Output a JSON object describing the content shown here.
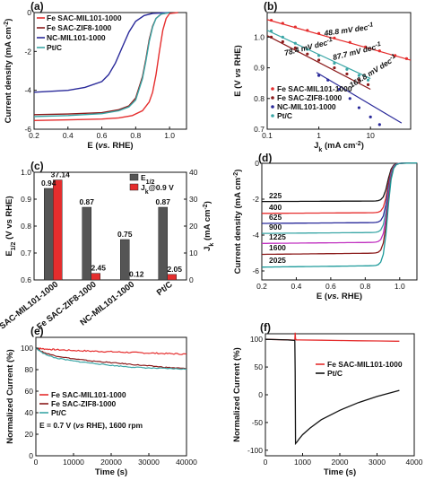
{
  "colors": {
    "fe_mil": "#e52d2d",
    "fe_zif": "#8b1a1a",
    "nc": "#2a2a9a",
    "ptc": "#3aa6a6",
    "black": "#111111",
    "grey": "#555555"
  },
  "chart_data": [
    {
      "id": "a",
      "tag": "(a)",
      "type": "line",
      "ylabel": "Current density (mA cm",
      "ylabel_sup": "-2",
      "ylabel_end": ")",
      "xlabel_pre": "E (",
      "xlabel_it": "vs.",
      "xlabel_post": " RHE)",
      "xlim": [
        0.2,
        1.1
      ],
      "ylim": [
        -6,
        0
      ],
      "xticks": [
        "0.2",
        "0.4",
        "0.6",
        "0.8",
        "1.0"
      ],
      "yticks": [
        "0",
        "-2",
        "-4",
        "-6"
      ],
      "legend": [
        "Fe SAC-MIL101-1000",
        "Fe SAC-ZIF8-1000",
        "NC-MIL101-1000",
        "Pt/C"
      ],
      "series": [
        {
          "name": "Fe SAC-MIL101-1000",
          "color": "fe_mil",
          "x": [
            0.2,
            0.4,
            0.6,
            0.7,
            0.78,
            0.84,
            0.88,
            0.9,
            0.92,
            0.94,
            0.96,
            0.98,
            1.0,
            1.05
          ],
          "y": [
            -5.55,
            -5.52,
            -5.48,
            -5.42,
            -5.3,
            -5.05,
            -4.6,
            -4.1,
            -3.2,
            -2.0,
            -0.9,
            -0.3,
            -0.05,
            0
          ]
        },
        {
          "name": "Fe SAC-ZIF8-1000",
          "color": "fe_zif",
          "x": [
            0.2,
            0.4,
            0.6,
            0.7,
            0.76,
            0.8,
            0.84,
            0.86,
            0.88,
            0.9,
            0.92,
            0.95,
            1.0
          ],
          "y": [
            -5.25,
            -5.22,
            -5.15,
            -5.0,
            -4.8,
            -4.4,
            -3.3,
            -2.4,
            -1.4,
            -0.7,
            -0.3,
            -0.08,
            0
          ]
        },
        {
          "name": "NC-MIL101-1000",
          "color": "nc",
          "x": [
            0.2,
            0.4,
            0.5,
            0.6,
            0.64,
            0.68,
            0.72,
            0.76,
            0.8,
            0.85,
            0.9,
            1.0
          ],
          "y": [
            -4.1,
            -4.0,
            -3.85,
            -3.55,
            -3.2,
            -2.6,
            -1.8,
            -1.0,
            -0.45,
            -0.15,
            -0.04,
            0
          ]
        },
        {
          "name": "Pt/C",
          "color": "ptc",
          "x": [
            0.2,
            0.4,
            0.6,
            0.7,
            0.76,
            0.8,
            0.84,
            0.86,
            0.88,
            0.9,
            0.92,
            0.95,
            1.0
          ],
          "y": [
            -5.35,
            -5.3,
            -5.2,
            -5.05,
            -4.85,
            -4.5,
            -3.4,
            -2.5,
            -1.5,
            -0.75,
            -0.3,
            -0.08,
            0
          ]
        }
      ]
    },
    {
      "id": "b",
      "tag": "(b)",
      "type": "scatter",
      "xscale": "log",
      "ylabel_pre": "E (V ",
      "ylabel_it": "vs",
      "ylabel_post": " RHE)",
      "xlabel": "J",
      "xlabel_sub": "k",
      "xlabel_post": " (mA cm",
      "xlabel_sup": "-2",
      "xlabel_end": ")",
      "xlim": [
        0.1,
        60
      ],
      "ylim": [
        0.7,
        1.08
      ],
      "xticks": [
        "0.1",
        "1",
        "10"
      ],
      "yticks": [
        "0.7",
        "0.8",
        "0.9",
        "1.0"
      ],
      "legend": [
        "Fe SAC-MIL101-1000",
        "Fe SAC-ZIF8-1000",
        "NC-MIL101-1000",
        "Pt/C"
      ],
      "series": [
        {
          "name": "Fe SAC-MIL101-1000",
          "color": "fe_mil",
          "x": [
            0.12,
            0.2,
            0.35,
            0.6,
            1,
            2,
            4,
            8,
            15,
            30,
            50
          ],
          "y": [
            1.055,
            1.045,
            1.033,
            1.022,
            1.012,
            0.997,
            0.983,
            0.968,
            0.955,
            0.94,
            0.93
          ],
          "fit": [
            [
              0.1,
              1.057
            ],
            [
              60,
              0.925
            ]
          ],
          "slope": "48.8 mV dec",
          "slope_sup": "-1"
        },
        {
          "name": "Fe SAC-ZIF8-1000",
          "color": "fe_zif",
          "x": [
            0.12,
            0.2,
            0.35,
            0.6,
            1,
            2,
            3.5,
            6,
            9
          ],
          "y": [
            1.0,
            0.985,
            0.965,
            0.945,
            0.925,
            0.9,
            0.88,
            0.86,
            0.845
          ],
          "fit": [
            [
              0.1,
              1.005
            ],
            [
              10,
              0.83
            ]
          ],
          "slope": "87.7 mV dec",
          "slope_sup": "-1"
        },
        {
          "name": "NC-MIL101-1000",
          "color": "nc",
          "x": [
            1,
            1.5,
            2.5,
            4,
            6,
            10,
            15
          ],
          "y": [
            0.875,
            0.86,
            0.83,
            0.8,
            0.77,
            0.74,
            0.715
          ],
          "fit": [
            [
              0.9,
              0.885
            ],
            [
              40,
              0.72
            ]
          ],
          "slope": "163.8 mV dec",
          "slope_sup": "-1"
        },
        {
          "name": "Pt/C",
          "color": "ptc",
          "x": [
            0.12,
            0.2,
            0.35,
            0.6,
            1,
            2,
            3.5,
            6,
            9
          ],
          "y": [
            1.02,
            1.0,
            0.98,
            0.96,
            0.94,
            0.915,
            0.895,
            0.875,
            0.86
          ],
          "fit": [
            [
              0.1,
              1.022
            ],
            [
              10,
              0.865
            ]
          ],
          "slope": "78.4 mV dec",
          "slope_sup": "-1"
        }
      ]
    },
    {
      "id": "c",
      "tag": "(c)",
      "type": "bar",
      "categories": [
        "Fe SAC-MIL101-1000",
        "Fe SAC-ZIF8-1000",
        "NC-MIL101-1000",
        "Pt/C"
      ],
      "ylabel": "E",
      "ylabel_sub": "1/2",
      "ylabel_post": " (V vs RHE)",
      "y2label": "J",
      "y2label_sub": "k",
      "y2label_post": " (mA cm",
      "y2label_sup": "-2",
      "y2label_end": ")",
      "ylim": [
        0.6,
        1.0
      ],
      "y2lim": [
        0,
        40
      ],
      "yticks": [
        "0.6",
        "0.7",
        "0.8",
        "0.9",
        "1.0"
      ],
      "y2ticks": [
        "0",
        "10",
        "20",
        "30",
        "40"
      ],
      "legend": [
        {
          "label": "E",
          "sub": "1/2"
        },
        {
          "label": "J",
          "sub": "k",
          "post": "@0.9 V"
        }
      ],
      "series": [
        {
          "name": "E1/2",
          "color": "grey",
          "values": [
            0.94,
            0.87,
            0.75,
            0.87
          ],
          "labels": [
            "0.94",
            "0.87",
            "0.75",
            "0.87"
          ]
        },
        {
          "name": "Jk@0.9 V",
          "color": "fe_mil",
          "values": [
            37.14,
            2.45,
            0.12,
            2.05
          ],
          "labels": [
            "37.14",
            "2.45",
            "0.12",
            "2.05"
          ]
        }
      ]
    },
    {
      "id": "d",
      "tag": "(d)",
      "type": "line",
      "ylabel": "Current density (mA cm",
      "ylabel_sup": "-2",
      "ylabel_end": ")",
      "xlabel_pre": "E (",
      "xlabel_it": "vs.",
      "xlabel_post": " RHE)",
      "xlim": [
        0.2,
        1.1
      ],
      "ylim": [
        -6.5,
        0
      ],
      "xticks": [
        "0.2",
        "0.4",
        "0.6",
        "0.8",
        "1.0"
      ],
      "yticks": [
        "0",
        "-2",
        "-4",
        "-6"
      ],
      "series": [
        {
          "name": "225",
          "color": "#111111",
          "plateau": -2.1
        },
        {
          "name": "400",
          "color": "#e52d2d",
          "plateau": -2.75
        },
        {
          "name": "625",
          "color": "#2a2a9a",
          "plateau": -3.3
        },
        {
          "name": "900",
          "color": "#3aa6a6",
          "plateau": -3.85
        },
        {
          "name": "1225",
          "color": "#c030c0",
          "plateau": -4.4
        },
        {
          "name": "1600",
          "color": "#8b1a1a",
          "plateau": -5.0
        },
        {
          "name": "2025",
          "color": "#1e9b9b",
          "plateau": -5.7
        }
      ]
    },
    {
      "id": "e",
      "tag": "(e)",
      "type": "line",
      "ylabel": "Normalized Current (%)",
      "xlabel": "Time (s)",
      "xlim": [
        0,
        40000
      ],
      "ylim": [
        0,
        110
      ],
      "xticks": [
        "0",
        "10000",
        "20000",
        "30000",
        "40000"
      ],
      "yticks": [
        "0",
        "20",
        "40",
        "60",
        "80",
        "100"
      ],
      "legend": [
        "Fe SAC-MIL101-1000",
        "Fe SAC-ZIF8-1000",
        "Pt/C"
      ],
      "note_pre": "E = 0.7 V (",
      "note_it": "vs",
      "note_post": " RHE), 1600 rpm",
      "series": [
        {
          "name": "Fe SAC-MIL101-1000",
          "color": "fe_mil",
          "x": [
            0,
            2000,
            5000,
            10000,
            15000,
            20000,
            25000,
            30000,
            35000,
            40000
          ],
          "y": [
            100,
            99.3,
            98.6,
            97.8,
            97.2,
            96.6,
            96.0,
            95.4,
            94.9,
            94.4
          ]
        },
        {
          "name": "Fe SAC-ZIF8-1000",
          "color": "fe_zif",
          "x": [
            0,
            2000,
            5000,
            10000,
            15000,
            20000,
            25000,
            30000,
            35000,
            40000
          ],
          "y": [
            100,
            96,
            93,
            90,
            88,
            86.5,
            85,
            83.5,
            82,
            81
          ]
        },
        {
          "name": "Pt/C",
          "color": "ptc",
          "x": [
            0,
            2000,
            5000,
            10000,
            15000,
            20000,
            25000,
            30000,
            35000,
            40000
          ],
          "y": [
            100,
            95,
            91,
            88,
            86,
            84,
            82.5,
            81.5,
            81,
            80.5
          ]
        }
      ]
    },
    {
      "id": "f",
      "tag": "(f)",
      "type": "line",
      "ylabel": "Normalized Current (%)",
      "xlabel": "Time (s)",
      "xlim": [
        0,
        4000
      ],
      "ylim": [
        -110,
        110
      ],
      "xticks": [
        "0",
        "1000",
        "2000",
        "3000",
        "4000"
      ],
      "yticks": [
        "-100",
        "-50",
        "0",
        "50",
        "100"
      ],
      "legend": [
        "Fe SAC-MIL101-1000",
        "Pt/C"
      ],
      "series": [
        {
          "name": "Fe SAC-MIL101-1000",
          "color": "fe_mil",
          "x": [
            0,
            300,
            600,
            790,
            800,
            810,
            830,
            900,
            1500,
            2000,
            2500,
            3000,
            3500,
            3600
          ],
          "y": [
            100,
            99.5,
            99,
            98.5,
            112,
            101,
            99,
            98.8,
            98.3,
            97.8,
            97.4,
            97,
            96.6,
            96.5
          ]
        },
        {
          "name": "Pt/C",
          "color": "black",
          "x": [
            0,
            300,
            600,
            790,
            800,
            810,
            850,
            900,
            1000,
            1200,
            1500,
            2000,
            2500,
            3000,
            3500,
            3600
          ],
          "y": [
            100,
            99.5,
            98.8,
            98,
            40,
            -88,
            -85,
            -80,
            -72,
            -60,
            -45,
            -28,
            -14,
            -3,
            6,
            8
          ]
        }
      ]
    }
  ]
}
